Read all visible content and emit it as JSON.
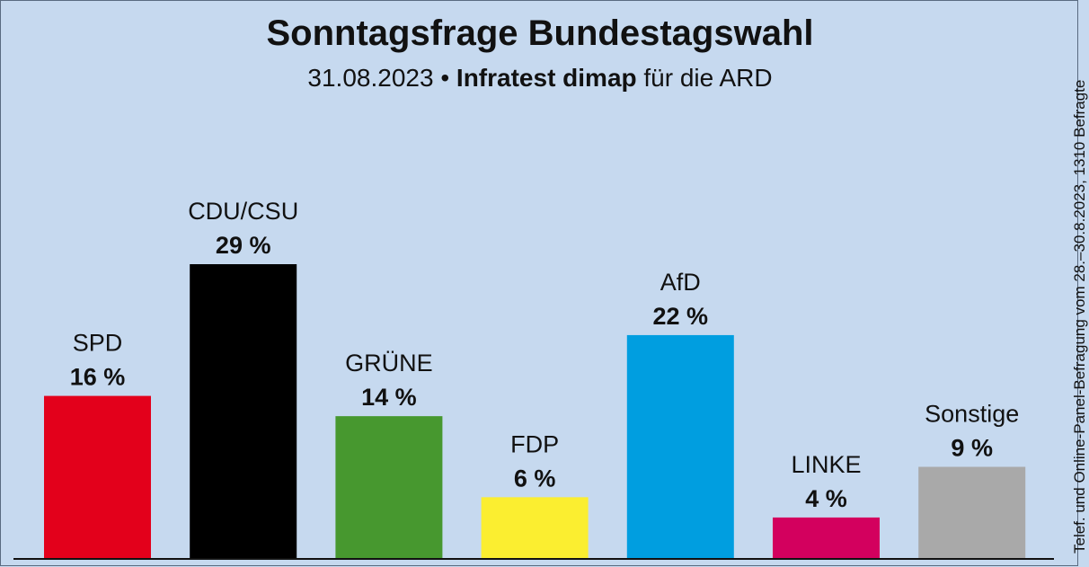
{
  "header": {
    "title": "Sonntagsfrage Bundestagswahl",
    "subtitle_date": "31.08.2023",
    "subtitle_sep": "•",
    "subtitle_pollster": "Infratest dimap",
    "subtitle_suffix": "für die ARD"
  },
  "source_note": "Telef. und Online-Panel-Befragung vom 28.–30.8.2023, 1310 Befragte",
  "chart_data": {
    "type": "bar",
    "title": "Sonntagsfrage Bundestagswahl",
    "categories": [
      "SPD",
      "CDU/CSU",
      "GRÜNE",
      "FDP",
      "AfD",
      "LINKE",
      "Sonstige"
    ],
    "values": [
      16,
      29,
      14,
      6,
      22,
      4,
      9
    ],
    "value_labels": [
      "16 %",
      "29 %",
      "14 %",
      "6 %",
      "22 %",
      "4 %",
      "9 %"
    ],
    "colors": [
      "#e3001b",
      "#000000",
      "#47982f",
      "#fbee30",
      "#009ee0",
      "#d3005e",
      "#a9a9a9"
    ],
    "ylim": [
      0,
      29
    ],
    "grid": false,
    "legend": "none"
  }
}
